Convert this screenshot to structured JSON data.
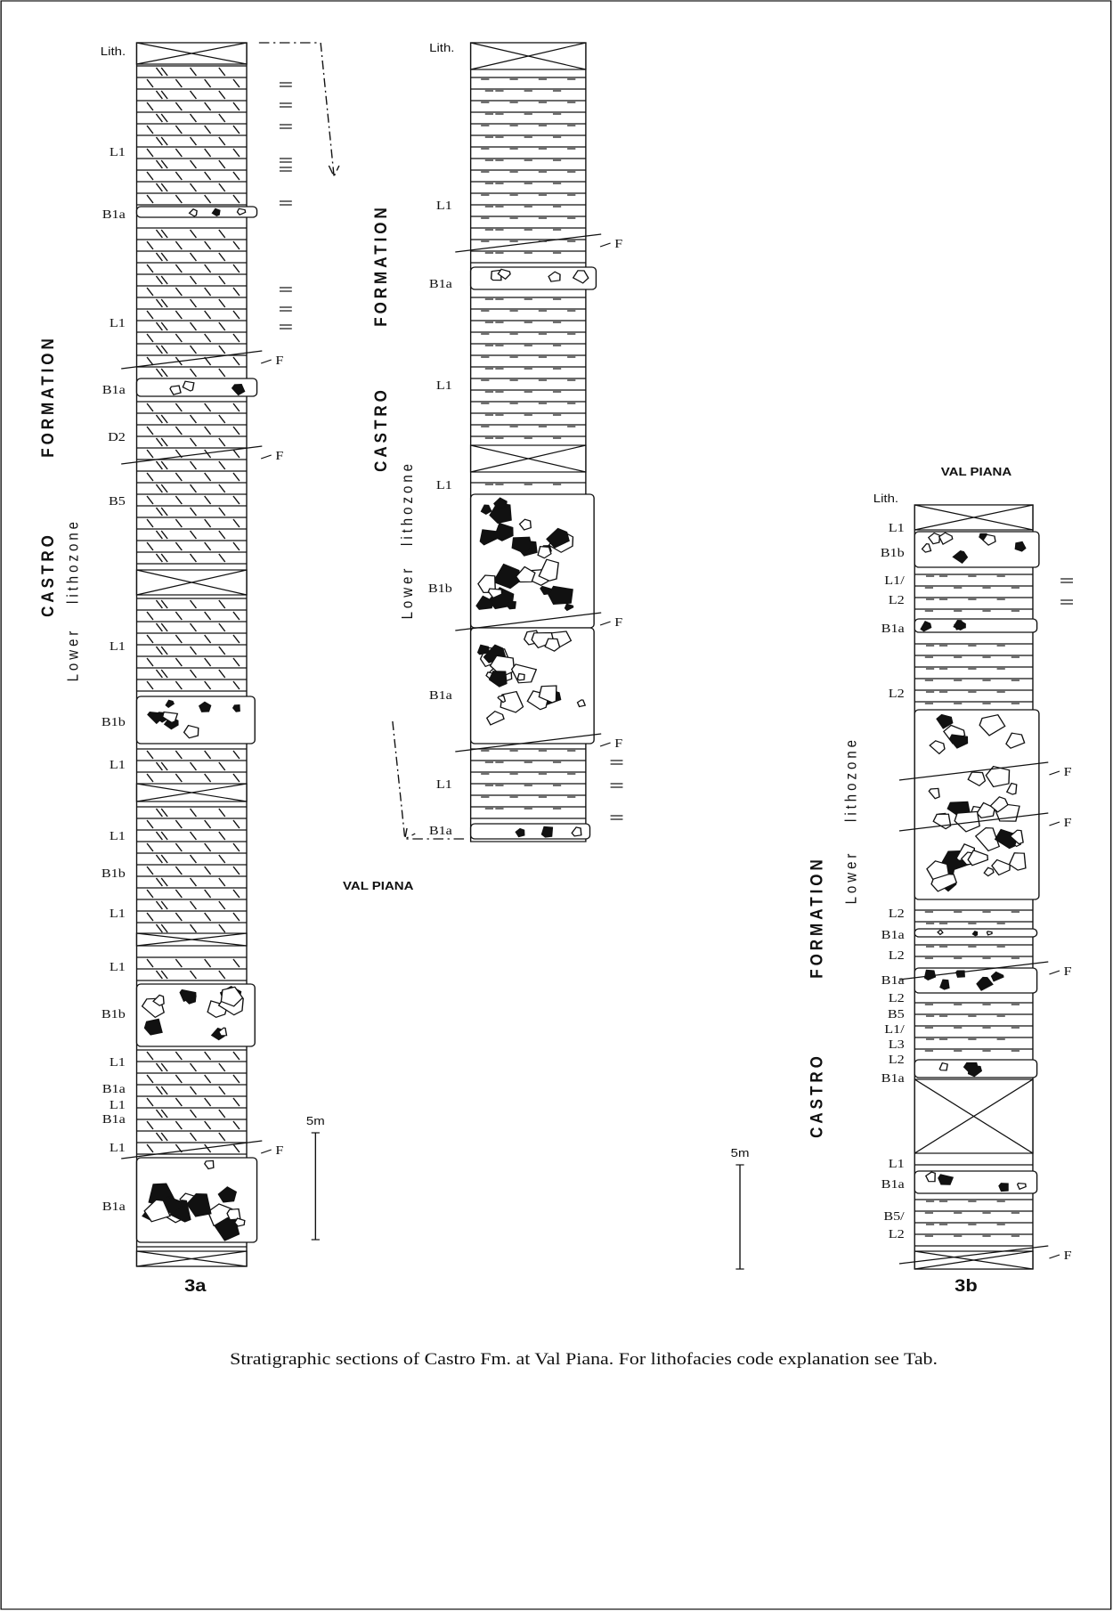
{
  "sections": [
    {
      "lith": "Lith.",
      "facies": [
        "L1",
        "B1a",
        "L1",
        "B1a",
        "D2",
        "B5",
        "L1",
        "B1b",
        "L1",
        "L1",
        "B1b",
        "L1",
        "L1",
        "B1b",
        "L1",
        "B1a",
        "L1",
        "B1a",
        "L1",
        "B1a"
      ],
      "faults": [
        "F",
        "F",
        "F"
      ],
      "formation": [
        "CASTRO",
        "FORMATION"
      ],
      "lithozone": [
        "Lower",
        "lithozone"
      ],
      "scale": "5m",
      "label": "3a"
    },
    {
      "lith": "Lith.",
      "facies": [
        "L1",
        "B1a",
        "L1",
        "L1",
        "B1b",
        "B1a",
        "L1",
        "B1a"
      ],
      "faults": [
        "F",
        "F",
        "F"
      ],
      "formation": [
        "CASTRO",
        "FORMATION"
      ],
      "lithozone": [
        "Lower",
        "lithozone"
      ]
    },
    {
      "title": "VAL PIANA",
      "lith": "Lith.",
      "facies": [
        "L1",
        "B1b",
        "L1/",
        "L2",
        "B1a",
        "L2",
        "L2",
        "B1a",
        "L2",
        "B1a",
        "L2",
        "B5",
        "L1/",
        "L3",
        "L2",
        "B1a",
        "L1",
        "B1a",
        "B5/",
        "L2"
      ],
      "faults": [
        "F",
        "F",
        "F",
        "F"
      ],
      "formation": [
        "CASTRO",
        "FORMATION"
      ],
      "lithozone": [
        "Lower",
        "lithozone"
      ],
      "scale": "5m",
      "label": "3b"
    }
  ],
  "locality": "VAL PIANA",
  "caption": "Stratigraphic sections of Castro Fm. at  Val Piana. For lithofacies code explanation see Tab."
}
